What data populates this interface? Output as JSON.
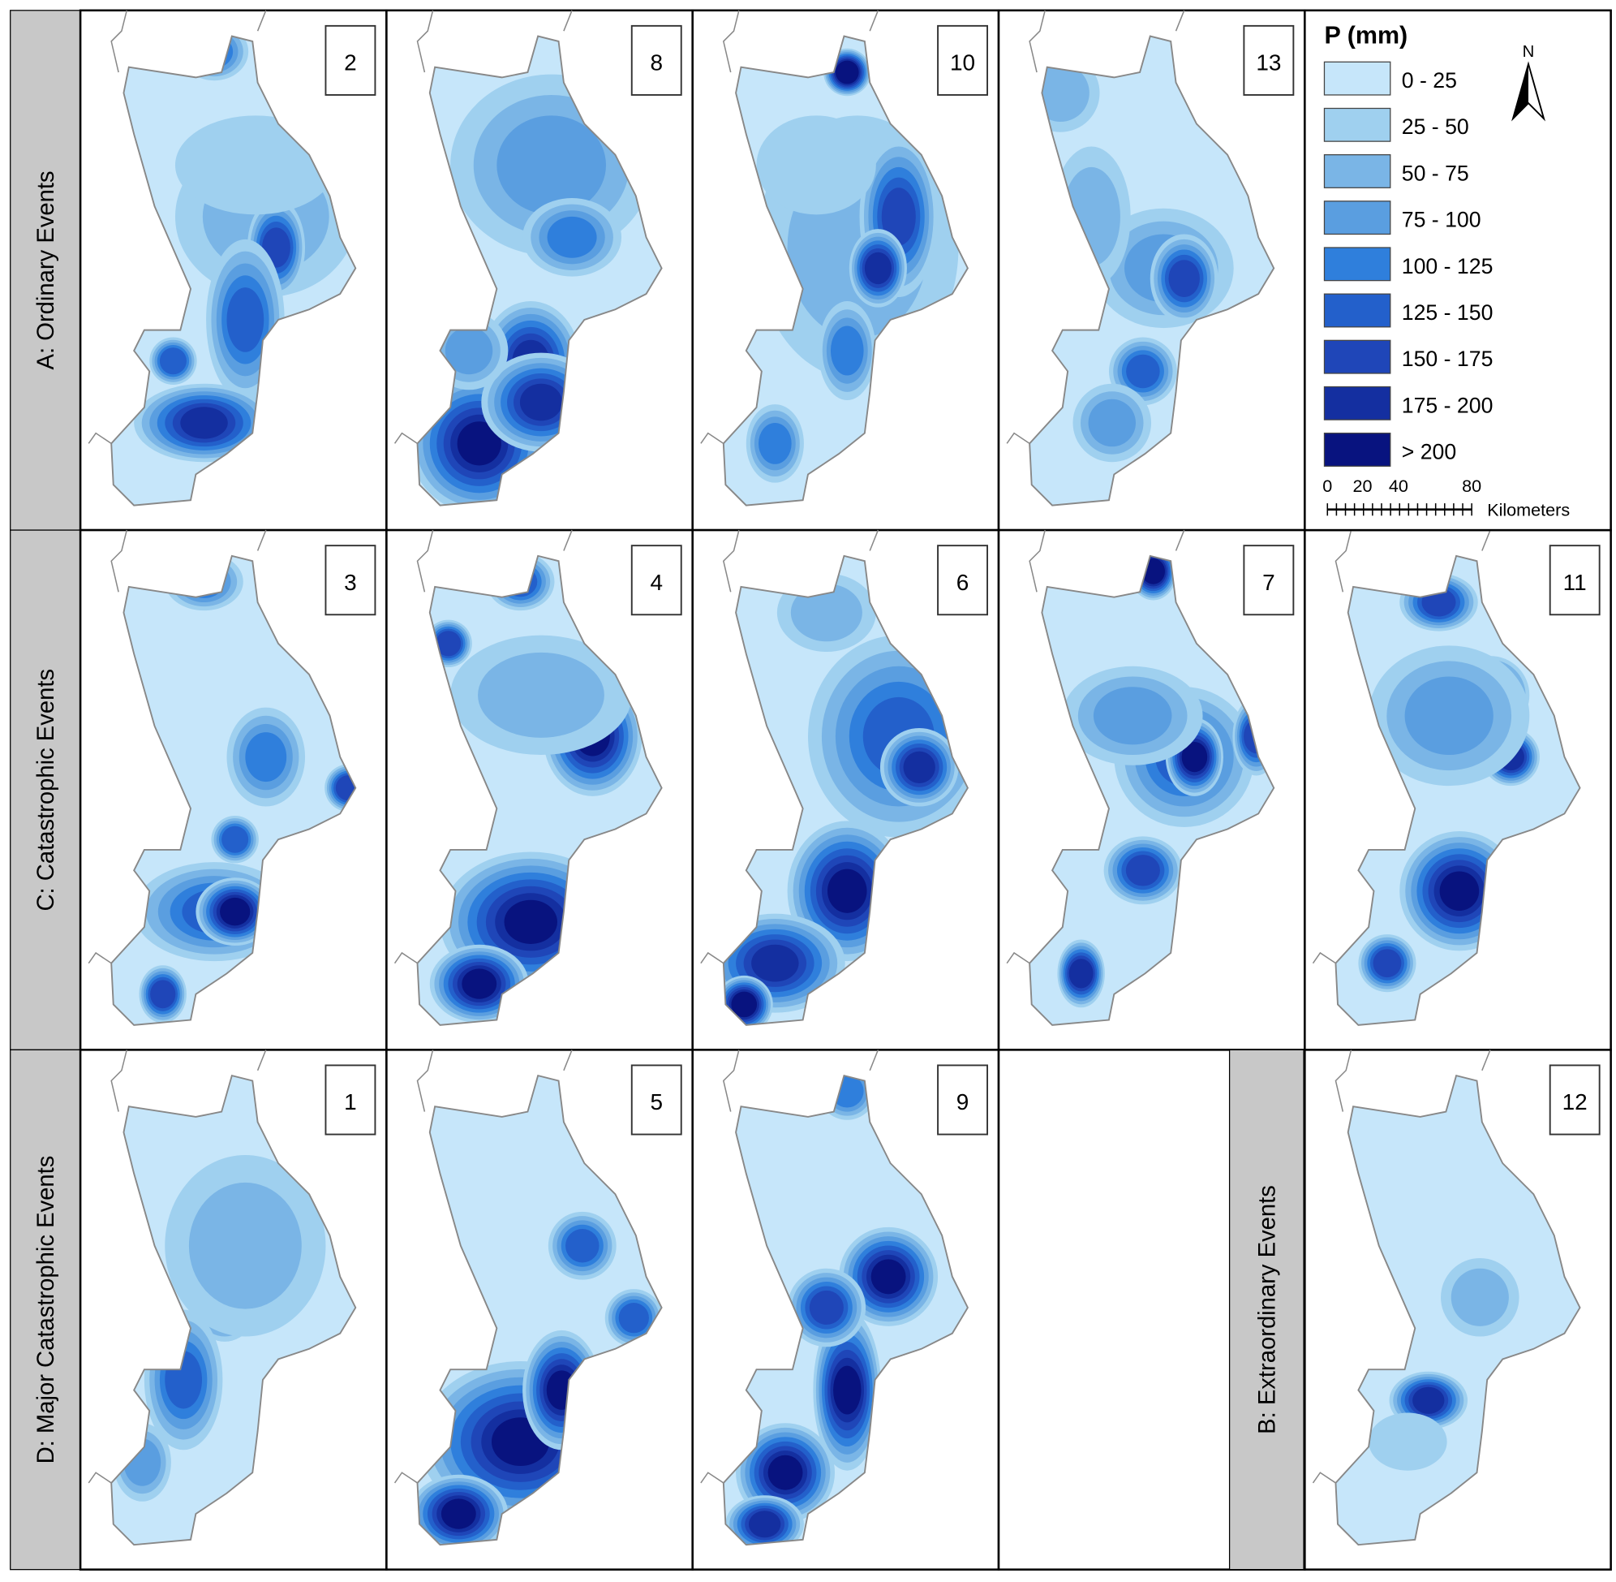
{
  "rows": [
    {
      "label": "A: Ordinary Events",
      "panels": [
        "2",
        "8",
        "10",
        "13"
      ]
    },
    {
      "label": "C: Catastrophic Events",
      "panels": [
        "3",
        "4",
        "6",
        "7",
        "11"
      ]
    },
    {
      "label": "D: Major Catastrophic Events",
      "panels": [
        "1",
        "5",
        "9"
      ]
    }
  ],
  "extra": {
    "label": "B: Extraordinary Events",
    "panels": [
      "12"
    ]
  },
  "legend": {
    "title": "P (mm)",
    "classes": [
      {
        "label": "0 - 25",
        "color": "#c6e6fa"
      },
      {
        "label": "25 - 50",
        "color": "#9fd0ef"
      },
      {
        "label": "50 - 75",
        "color": "#7ab5e6"
      },
      {
        "label": "75 - 100",
        "color": "#5a9ee0"
      },
      {
        "label": "100 - 125",
        "color": "#2f7fdc"
      },
      {
        "label": "125 - 150",
        "color": "#2360cb"
      },
      {
        "label": "150 - 175",
        "color": "#1f46b8"
      },
      {
        "label": "175 - 200",
        "color": "#142fa0"
      },
      {
        "label": "> 200",
        "color": "#08137f"
      }
    ],
    "north": "N",
    "scale": {
      "ticks": [
        "0",
        "20",
        "40",
        "80"
      ],
      "unit": "Kilometers"
    }
  }
}
